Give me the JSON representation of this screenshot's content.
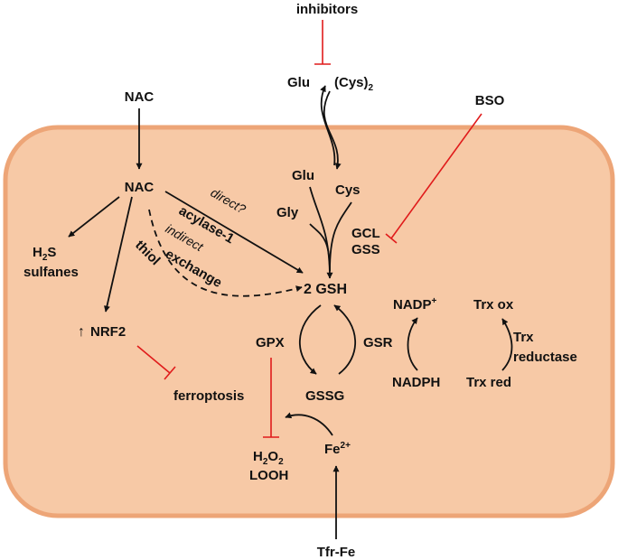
{
  "nodes": {
    "inhibitors": "inhibitors",
    "glu_out": "Glu",
    "cys2_main": "(Cys)",
    "cys2_sub": "2",
    "nac_out": "NAC",
    "bso": "BSO",
    "nac_in": "NAC",
    "glu_in": "Glu",
    "cys_in": "Cys",
    "gly": "Gly",
    "gcl": "GCL",
    "gss": "GSS",
    "h2s_main": "H",
    "h2s_sub": "2",
    "h2s_end": "S",
    "sulfanes": "sulfanes",
    "direct": "direct?",
    "acylase": "acylase-1",
    "indirect": "indirect",
    "thiol": "thiol",
    "exchange": "exchange",
    "gsh": "2 GSH",
    "nadp_main": "NADP",
    "nadp_sup": "+",
    "trx_ox": "Trx ox",
    "nrf2_arrow": "↑",
    "nrf2": "NRF2",
    "gpx": "GPX",
    "gsr": "GSR",
    "trx_red_enz_1": "Trx",
    "trx_red_enz_2": "reductase",
    "nadph": "NADPH",
    "trx_red": "Trx red",
    "ferroptosis": "ferroptosis",
    "gssg": "GSSG",
    "h2o2_main": "H",
    "h2o2_sub1": "2",
    "h2o2_mid": "O",
    "h2o2_sub2": "2",
    "looh": "LOOH",
    "fe_main": "Fe",
    "fe_sup": "2+",
    "tfr": "Tfr-Fe"
  },
  "colors": {
    "cell_fill": "#f7c9a6",
    "cell_border": "#eda577",
    "inhibit": "#e01b1b",
    "arrow": "#111111"
  }
}
